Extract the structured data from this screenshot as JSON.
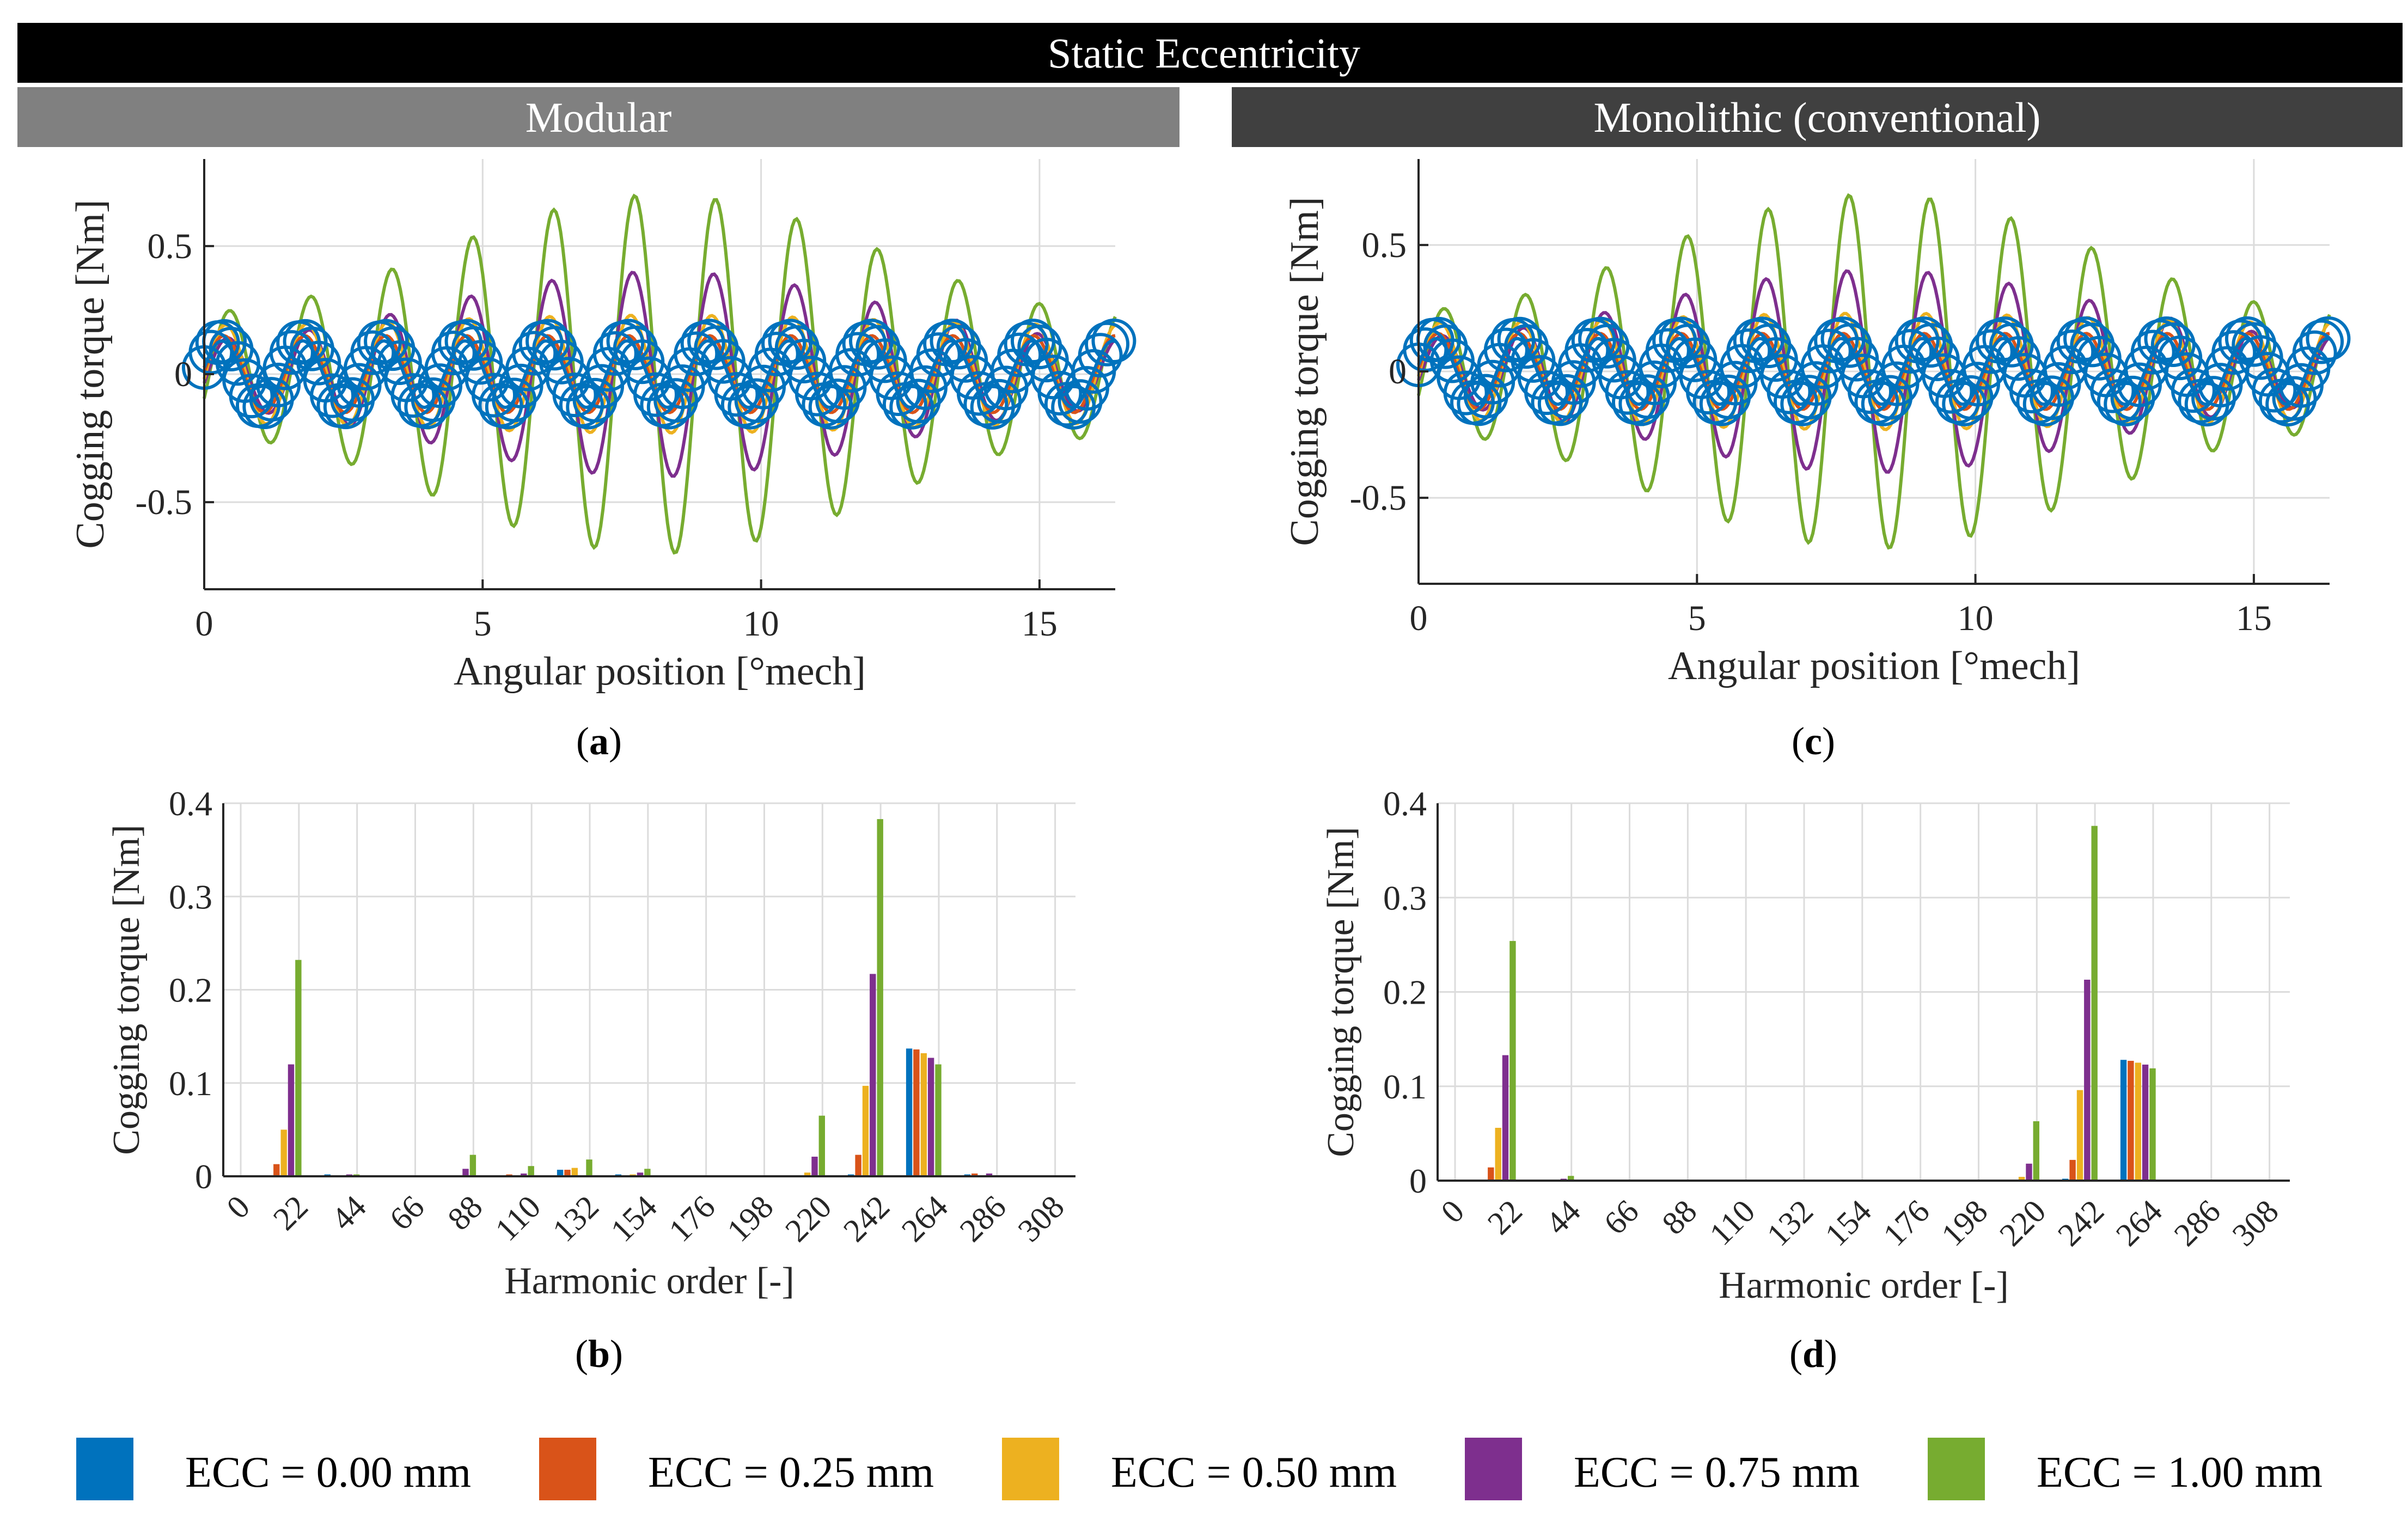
{
  "header": {
    "title": "Static Eccentricity",
    "title_bg": "#000000",
    "left_group": "Modular",
    "left_group_bg": "#808080",
    "right_group": "Monolithic (conventional)",
    "right_group_bg": "#404040"
  },
  "colors": {
    "ecc_000": "#0072BD",
    "ecc_025": "#D95319",
    "ecc_050": "#EDB120",
    "ecc_075": "#7E2F8E",
    "ecc_100": "#77AC30"
  },
  "legend": {
    "items": [
      {
        "label": "ECC = 0.00 mm",
        "color": "#0072BD"
      },
      {
        "label": "ECC = 0.25 mm",
        "color": "#D95319"
      },
      {
        "label": "ECC = 0.50 mm",
        "color": "#EDB120"
      },
      {
        "label": "ECC = 0.75 mm",
        "color": "#7E2F8E"
      },
      {
        "label": "ECC = 1.00 mm",
        "color": "#77AC30"
      }
    ]
  },
  "chart_data": [
    {
      "id": "a",
      "caption": "(a)",
      "caption_letter": "a",
      "type": "line",
      "xlabel": "Angular position [°mech]",
      "ylabel": "Cogging torque [Nm]",
      "xlim": [
        0,
        16.36
      ],
      "ylim": [
        -0.84,
        0.84
      ],
      "xticks": [
        0,
        5,
        10,
        15
      ],
      "yticks": [
        -0.5,
        0,
        0.5
      ],
      "yticklabels": [
        "-0.5",
        "0",
        "0.5"
      ],
      "grid": true,
      "period_deg": 1.4545,
      "series": [
        {
          "name": "ECC = 0.00 mm",
          "amplitude": 0.13,
          "markers": "circle"
        },
        {
          "name": "ECC = 0.25 mm",
          "amplitude": 0.15
        },
        {
          "name": "ECC = 0.50 mm",
          "amplitude": 0.23
        },
        {
          "name": "ECC = 0.75 mm",
          "amplitude": 0.4
        },
        {
          "name": "ECC = 1.00 mm",
          "amplitude": 0.7
        }
      ]
    },
    {
      "id": "b",
      "caption": "(b)",
      "caption_letter": "b",
      "type": "bar",
      "xlabel": "Harmonic order [-]",
      "ylabel": "Cogging torque [Nm]",
      "categories": [
        0,
        22,
        44,
        66,
        88,
        110,
        132,
        154,
        176,
        198,
        220,
        242,
        264,
        286,
        308
      ],
      "ylim": [
        0,
        0.4
      ],
      "yticks": [
        0,
        0.1,
        0.2,
        0.3,
        0.4
      ],
      "yticklabels": [
        "0",
        "0.1",
        "0.2",
        "0.3",
        "0.4"
      ],
      "grid": true,
      "series": [
        {
          "name": "ECC = 0.00 mm",
          "values": [
            0,
            0,
            0.002,
            0,
            0.001,
            0.001,
            0.007,
            0.002,
            0,
            0,
            0.001,
            0.002,
            0.137,
            0.002,
            0
          ]
        },
        {
          "name": "ECC = 0.25 mm",
          "values": [
            0,
            0.013,
            0.001,
            0,
            0.001,
            0.002,
            0.007,
            0.001,
            0,
            0,
            0.001,
            0.023,
            0.136,
            0.003,
            0
          ]
        },
        {
          "name": "ECC = 0.50 mm",
          "values": [
            0,
            0.05,
            0.001,
            0,
            0.001,
            0.001,
            0.009,
            0.002,
            0,
            0,
            0.004,
            0.097,
            0.132,
            0.001,
            0
          ]
        },
        {
          "name": "ECC = 0.75 mm",
          "values": [
            0,
            0.12,
            0.002,
            0,
            0.008,
            0.003,
            0.001,
            0.004,
            0,
            0,
            0.021,
            0.217,
            0.127,
            0.003,
            0
          ]
        },
        {
          "name": "ECC = 1.00 mm",
          "values": [
            0,
            0.232,
            0.002,
            0,
            0.023,
            0.011,
            0.018,
            0.008,
            0,
            0,
            0.065,
            0.383,
            0.12,
            0.001,
            0
          ]
        }
      ]
    },
    {
      "id": "c",
      "caption": "(c)",
      "caption_letter": "c",
      "type": "line",
      "xlabel": "Angular position [°mech]",
      "ylabel": "Cogging torque [Nm]",
      "xlim": [
        0,
        16.36
      ],
      "ylim": [
        -0.84,
        0.84
      ],
      "xticks": [
        0,
        5,
        10,
        15
      ],
      "yticks": [
        -0.5,
        0,
        0.5
      ],
      "yticklabels": [
        "-0.5",
        "0",
        "0.5"
      ],
      "grid": true,
      "period_deg": 1.4545,
      "series": [
        {
          "name": "ECC = 0.00 mm",
          "amplitude": 0.13,
          "markers": "circle"
        },
        {
          "name": "ECC = 0.25 mm",
          "amplitude": 0.15
        },
        {
          "name": "ECC = 0.50 mm",
          "amplitude": 0.23
        },
        {
          "name": "ECC = 0.75 mm",
          "amplitude": 0.4
        },
        {
          "name": "ECC = 1.00 mm",
          "amplitude": 0.7
        }
      ]
    },
    {
      "id": "d",
      "caption": "(d)",
      "caption_letter": "d",
      "type": "bar",
      "xlabel": "Harmonic order [-]",
      "ylabel": "Cogging torque [Nm]",
      "categories": [
        0,
        22,
        44,
        66,
        88,
        110,
        132,
        154,
        176,
        198,
        220,
        242,
        264,
        286,
        308
      ],
      "ylim": [
        0,
        0.4
      ],
      "yticks": [
        0,
        0.1,
        0.2,
        0.3,
        0.4
      ],
      "yticklabels": [
        "0",
        "0.1",
        "0.2",
        "0.3",
        "0.4"
      ],
      "grid": true,
      "series": [
        {
          "name": "ECC = 0.00 mm",
          "values": [
            0,
            0,
            0,
            0,
            0,
            0,
            0,
            0,
            0,
            0,
            0,
            0.002,
            0.128,
            0.001,
            0
          ]
        },
        {
          "name": "ECC = 0.25 mm",
          "values": [
            0,
            0.014,
            0.001,
            0,
            0,
            0,
            0,
            0,
            0,
            0,
            0.001,
            0.022,
            0.127,
            0.001,
            0
          ]
        },
        {
          "name": "ECC = 0.50 mm",
          "values": [
            0,
            0.056,
            0.001,
            0,
            0,
            0,
            0,
            0,
            0,
            0,
            0.004,
            0.096,
            0.125,
            0.001,
            0
          ]
        },
        {
          "name": "ECC = 0.75 mm",
          "values": [
            0,
            0.133,
            0.002,
            0,
            0,
            0,
            0,
            0,
            0,
            0,
            0.018,
            0.213,
            0.123,
            0.001,
            0
          ]
        },
        {
          "name": "ECC = 1.00 mm",
          "values": [
            0,
            0.254,
            0.005,
            0,
            0,
            0,
            0,
            0,
            0,
            0,
            0.063,
            0.376,
            0.119,
            0.001,
            0
          ]
        }
      ]
    }
  ]
}
